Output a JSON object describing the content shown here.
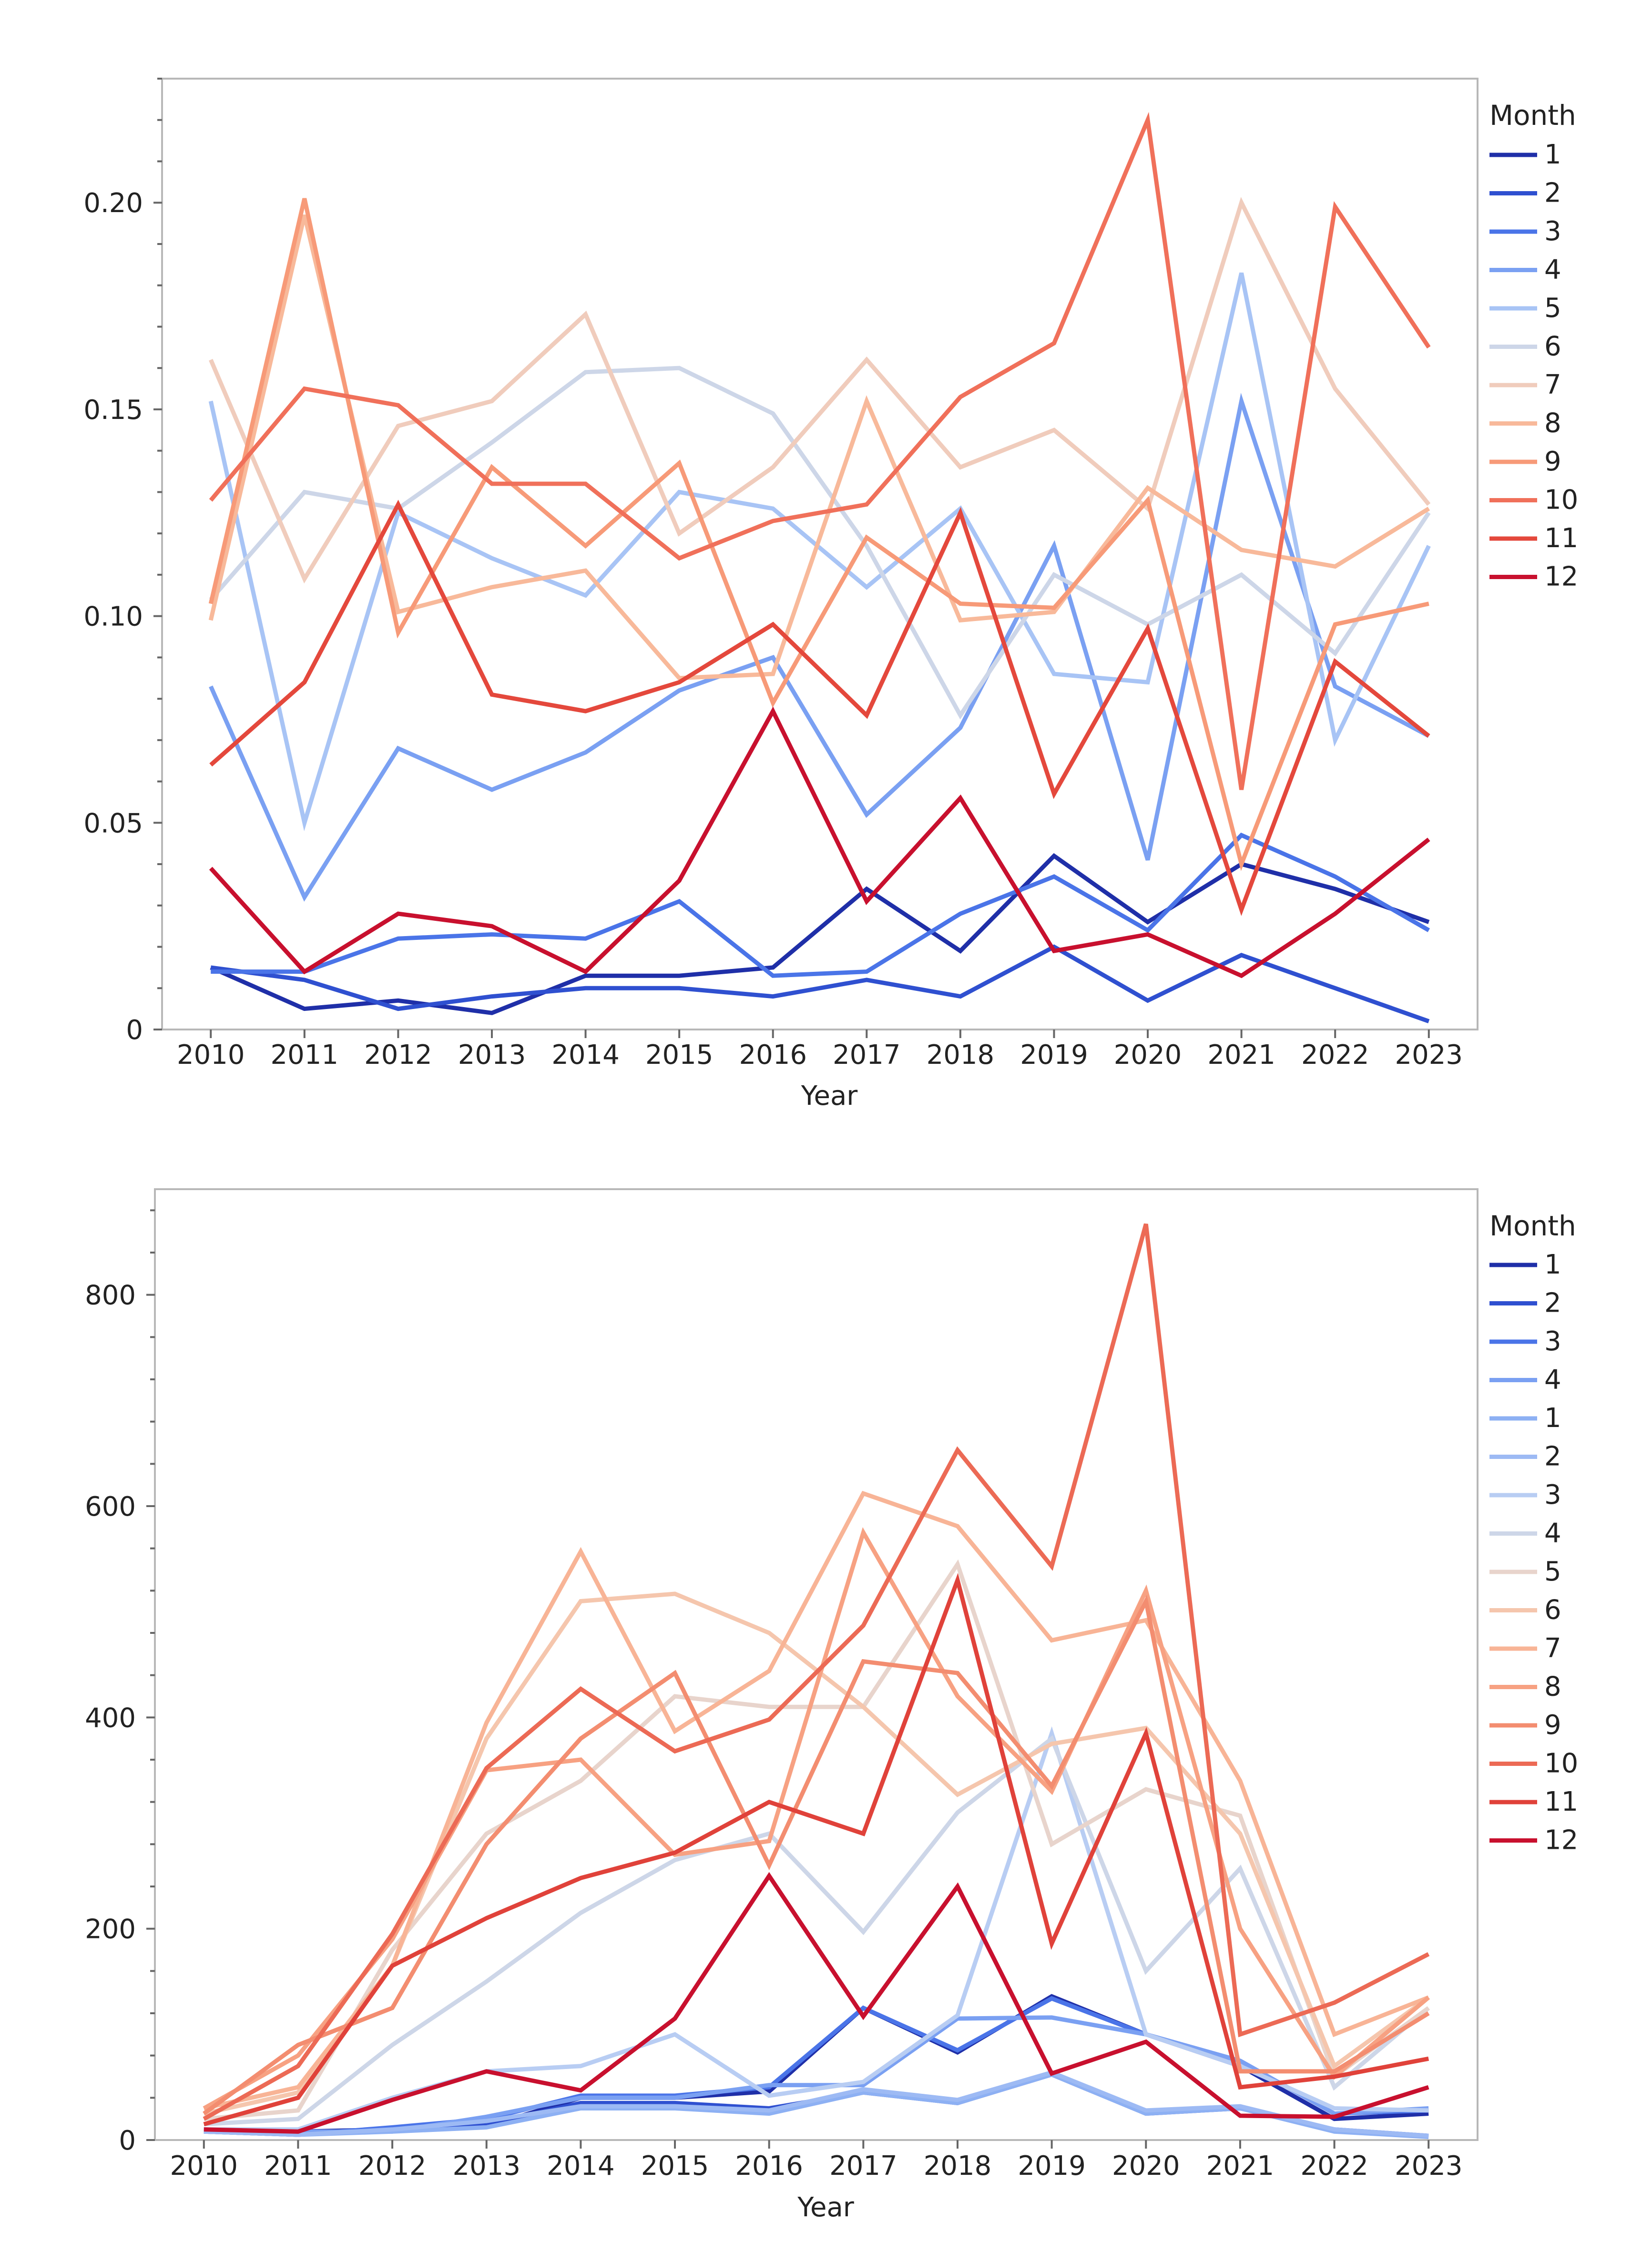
{
  "chart_data": [
    {
      "type": "line",
      "title": "",
      "xlabel": "Year",
      "ylabel": "",
      "legend_title": "Month",
      "legend_position": "right",
      "x": [
        2010,
        2011,
        2012,
        2013,
        2014,
        2015,
        2016,
        2017,
        2018,
        2019,
        2020,
        2021,
        2022,
        2023
      ],
      "ylim": [
        0,
        0.23
      ],
      "yticks": [
        0,
        0.05,
        0.1,
        0.15,
        0.2
      ],
      "ytick_labels": [
        "0",
        "0.05",
        "0.10",
        "0.15",
        "0.20"
      ],
      "series": [
        {
          "name": "1",
          "color": "#1f2fa8",
          "values": [
            0.015,
            0.005,
            0.007,
            0.004,
            0.013,
            0.013,
            0.015,
            0.034,
            0.019,
            0.042,
            0.026,
            0.04,
            0.034,
            0.026
          ]
        },
        {
          "name": "2",
          "color": "#2f50d0",
          "values": [
            0.015,
            0.012,
            0.005,
            0.008,
            0.01,
            0.01,
            0.008,
            0.012,
            0.008,
            0.02,
            0.007,
            0.018,
            0.01,
            0.002
          ]
        },
        {
          "name": "3",
          "color": "#4a74e8",
          "values": [
            0.014,
            0.014,
            0.022,
            0.023,
            0.022,
            0.031,
            0.013,
            0.014,
            0.028,
            0.037,
            0.024,
            0.047,
            0.037,
            0.024
          ]
        },
        {
          "name": "4",
          "color": "#7aa0f2",
          "values": [
            0.083,
            0.032,
            0.068,
            0.058,
            0.067,
            0.082,
            0.09,
            0.052,
            0.073,
            0.117,
            0.041,
            0.152,
            0.083,
            0.071
          ]
        },
        {
          "name": "5",
          "color": "#a8c4f5",
          "values": [
            0.152,
            0.05,
            0.125,
            0.114,
            0.105,
            0.13,
            0.126,
            0.107,
            0.126,
            0.086,
            0.084,
            0.183,
            0.07,
            0.117
          ]
        },
        {
          "name": "6",
          "color": "#cdd6e8",
          "values": [
            0.104,
            0.13,
            0.126,
            0.142,
            0.159,
            0.16,
            0.149,
            0.117,
            0.076,
            0.11,
            0.098,
            0.11,
            0.091,
            0.125
          ]
        },
        {
          "name": "7",
          "color": "#f0ccbc",
          "values": [
            0.162,
            0.109,
            0.146,
            0.152,
            0.173,
            0.12,
            0.136,
            0.162,
            0.136,
            0.145,
            0.126,
            0.2,
            0.155,
            0.127
          ]
        },
        {
          "name": "8",
          "color": "#f8b99a",
          "values": [
            0.099,
            0.197,
            0.101,
            0.107,
            0.111,
            0.085,
            0.086,
            0.152,
            0.099,
            0.101,
            0.131,
            0.116,
            0.112,
            0.126
          ]
        },
        {
          "name": "9",
          "color": "#f79a78",
          "values": [
            0.103,
            0.201,
            0.096,
            0.136,
            0.117,
            0.137,
            0.079,
            0.119,
            0.103,
            0.102,
            0.128,
            0.04,
            0.098,
            0.103
          ]
        },
        {
          "name": "10",
          "color": "#f0705a",
          "values": [
            0.128,
            0.155,
            0.151,
            0.132,
            0.132,
            0.114,
            0.123,
            0.127,
            0.153,
            0.166,
            0.22,
            0.058,
            0.199,
            0.165
          ]
        },
        {
          "name": "11",
          "color": "#e4483c",
          "values": [
            0.064,
            0.084,
            0.127,
            0.081,
            0.077,
            0.084,
            0.098,
            0.076,
            0.125,
            0.057,
            0.097,
            0.029,
            0.089,
            0.071
          ]
        },
        {
          "name": "12",
          "color": "#c8102e",
          "values": [
            0.039,
            0.014,
            0.028,
            0.025,
            0.014,
            0.036,
            0.077,
            0.031,
            0.056,
            0.019,
            0.023,
            0.013,
            0.028,
            0.046
          ]
        }
      ]
    },
    {
      "type": "line",
      "title": "",
      "xlabel": "Year",
      "ylabel": "",
      "legend_title": "Month",
      "legend_position": "right",
      "x": [
        2010,
        2011,
        2012,
        2013,
        2014,
        2015,
        2016,
        2017,
        2018,
        2019,
        2020,
        2021,
        2022,
        2023
      ],
      "ylim": [
        0,
        900
      ],
      "yticks": [
        0,
        200,
        400,
        600,
        800
      ],
      "ytick_labels": [
        "0",
        "200",
        "400",
        "600",
        "800"
      ],
      "series": [
        {
          "name": "1",
          "color": "#1f2fa8",
          "values": [
            10,
            8,
            10,
            13,
            40,
            40,
            46,
            125,
            83,
            136,
            100,
            70,
            20,
            25
          ]
        },
        {
          "name": "2",
          "color": "#2f50d0",
          "values": [
            8,
            5,
            10,
            15,
            35,
            35,
            30,
            45,
            35,
            62,
            25,
            30,
            10,
            4
          ]
        },
        {
          "name": "3",
          "color": "#4a74e8",
          "values": [
            8,
            5,
            12,
            20,
            42,
            42,
            50,
            125,
            85,
            134,
            100,
            75,
            25,
            28
          ]
        },
        {
          "name": "4",
          "color": "#7aa0f2",
          "values": [
            10,
            8,
            8,
            22,
            40,
            40,
            52,
            52,
            115,
            116,
            100,
            75,
            25,
            30
          ]
        },
        {
          "name": "1",
          "color": "#8db0f3",
          "values": [
            8,
            5,
            8,
            12,
            30,
            30,
            25,
            45,
            35,
            62,
            25,
            30,
            8,
            3
          ]
        },
        {
          "name": "2",
          "color": "#9dbaf4",
          "values": [
            8,
            5,
            10,
            18,
            32,
            32,
            28,
            48,
            38,
            64,
            28,
            32,
            10,
            4
          ]
        },
        {
          "name": "3",
          "color": "#b8cdf3",
          "values": [
            10,
            10,
            40,
            65,
            70,
            100,
            42,
            55,
            118,
            385,
            100,
            70,
            30,
            28
          ]
        },
        {
          "name": "4",
          "color": "#cdd6e8",
          "values": [
            15,
            20,
            90,
            150,
            215,
            265,
            290,
            197,
            310,
            380,
            160,
            257,
            50,
            125
          ]
        },
        {
          "name": "5",
          "color": "#e8d4cc",
          "values": [
            20,
            28,
            180,
            290,
            340,
            420,
            410,
            410,
            545,
            280,
            332,
            307,
            60,
            125
          ]
        },
        {
          "name": "6",
          "color": "#f5c6ad",
          "values": [
            25,
            45,
            165,
            380,
            510,
            517,
            480,
            410,
            327,
            375,
            390,
            290,
            70,
            135
          ]
        },
        {
          "name": "7",
          "color": "#f8b496",
          "values": [
            30,
            50,
            165,
            395,
            557,
            387,
            444,
            612,
            581,
            473,
            492,
            340,
            100,
            135
          ]
        },
        {
          "name": "8",
          "color": "#f7a182",
          "values": [
            30,
            80,
            190,
            350,
            360,
            270,
            283,
            575,
            420,
            330,
            520,
            200,
            60,
            135
          ]
        },
        {
          "name": "9",
          "color": "#f38d70",
          "values": [
            25,
            90,
            125,
            280,
            380,
            442,
            260,
            453,
            442,
            335,
            510,
            65,
            65,
            120
          ]
        },
        {
          "name": "10",
          "color": "#ec6a55",
          "values": [
            20,
            70,
            195,
            352,
            427,
            368,
            398,
            487,
            653,
            543,
            867,
            100,
            130,
            176
          ]
        },
        {
          "name": "11",
          "color": "#e0423a",
          "values": [
            15,
            40,
            165,
            210,
            248,
            272,
            320,
            290,
            530,
            186,
            385,
            50,
            60,
            77
          ]
        },
        {
          "name": "12",
          "color": "#c8102e",
          "values": [
            10,
            8,
            38,
            65,
            47,
            115,
            250,
            117,
            240,
            63,
            93,
            23,
            22,
            50
          ]
        }
      ]
    }
  ]
}
